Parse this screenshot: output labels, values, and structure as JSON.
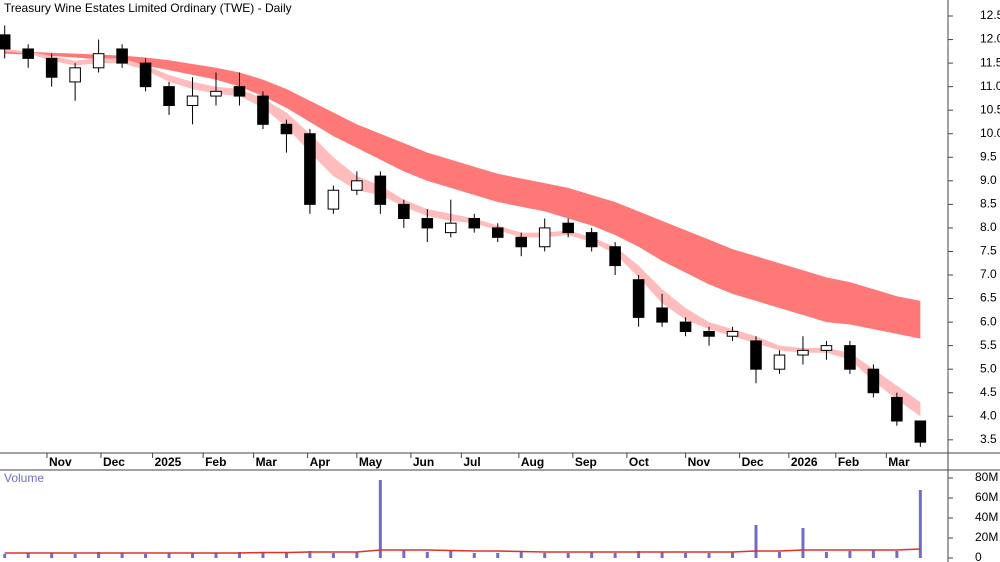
{
  "chart_data": [
    {
      "type": "candlestick",
      "title": "Treasury Wine Estates Limited Ordinary (TWE) - Daily",
      "x": [
        0,
        1,
        2,
        3,
        4,
        5,
        6,
        7,
        8,
        9,
        10,
        11,
        12,
        13,
        14,
        15,
        16,
        17,
        18,
        19,
        20,
        21,
        22,
        23,
        24,
        25,
        26,
        27,
        28,
        29,
        30,
        31,
        32,
        33,
        34,
        35,
        36,
        37,
        38,
        39
      ],
      "open": [
        12.1,
        11.8,
        11.6,
        11.1,
        11.4,
        11.8,
        11.5,
        11.0,
        10.6,
        10.8,
        11.0,
        10.8,
        10.2,
        10.0,
        8.4,
        8.8,
        9.1,
        8.5,
        8.2,
        7.9,
        8.2,
        8.0,
        7.8,
        7.6,
        8.1,
        7.9,
        7.6,
        6.9,
        6.3,
        6.0,
        5.8,
        5.7,
        5.6,
        5.0,
        5.3,
        5.4,
        5.5,
        5.0,
        4.4,
        3.9
      ],
      "high": [
        12.3,
        11.9,
        11.7,
        11.5,
        12.0,
        11.9,
        11.6,
        11.1,
        11.2,
        11.3,
        11.3,
        10.9,
        10.3,
        10.1,
        8.9,
        9.2,
        9.2,
        8.6,
        8.4,
        8.6,
        8.3,
        8.1,
        7.9,
        8.2,
        8.2,
        8.0,
        7.7,
        7.0,
        6.6,
        6.1,
        5.9,
        5.9,
        5.7,
        5.4,
        5.7,
        5.6,
        5.6,
        5.1,
        4.5,
        3.9
      ],
      "low": [
        11.6,
        11.4,
        11.0,
        10.7,
        11.3,
        11.4,
        10.9,
        10.4,
        10.2,
        10.6,
        10.6,
        10.1,
        9.6,
        8.3,
        8.3,
        8.7,
        8.3,
        8.0,
        7.7,
        7.8,
        7.9,
        7.7,
        7.4,
        7.5,
        7.8,
        7.5,
        7.0,
        5.9,
        5.9,
        5.7,
        5.5,
        5.6,
        4.7,
        4.9,
        5.1,
        5.2,
        4.9,
        4.4,
        3.8,
        3.35
      ],
      "close": [
        11.8,
        11.6,
        11.2,
        11.4,
        11.7,
        11.5,
        11.0,
        10.6,
        10.8,
        10.9,
        10.8,
        10.2,
        10.0,
        8.5,
        8.8,
        9.0,
        8.5,
        8.2,
        8.0,
        8.1,
        8.0,
        7.8,
        7.6,
        8.0,
        7.9,
        7.6,
        7.2,
        6.1,
        6.0,
        5.8,
        5.7,
        5.8,
        5.0,
        5.3,
        5.4,
        5.5,
        5.0,
        4.5,
        3.9,
        3.45
      ],
      "bands": [
        {
          "color": "#ff7878",
          "upper": [
            11.75,
            11.74,
            11.72,
            11.7,
            11.68,
            11.66,
            11.62,
            11.56,
            11.48,
            11.4,
            11.3,
            11.15,
            10.95,
            10.7,
            10.45,
            10.2,
            10.0,
            9.8,
            9.6,
            9.45,
            9.3,
            9.15,
            9.05,
            8.95,
            8.85,
            8.7,
            8.55,
            8.35,
            8.15,
            7.95,
            7.75,
            7.55,
            7.4,
            7.25,
            7.1,
            6.95,
            6.85,
            6.7,
            6.55,
            6.45
          ],
          "lower": [
            11.7,
            11.68,
            11.65,
            11.62,
            11.58,
            11.52,
            11.45,
            11.35,
            11.25,
            11.15,
            11.0,
            10.8,
            10.55,
            10.25,
            9.95,
            9.7,
            9.45,
            9.2,
            9.0,
            8.85,
            8.7,
            8.55,
            8.45,
            8.35,
            8.2,
            8.05,
            7.85,
            7.6,
            7.3,
            7.05,
            6.8,
            6.6,
            6.45,
            6.3,
            6.15,
            6.0,
            5.95,
            5.85,
            5.75,
            5.65
          ]
        },
        {
          "color": "#ffbcbc",
          "upper": [
            11.8,
            11.75,
            11.65,
            11.55,
            11.6,
            11.6,
            11.45,
            11.25,
            11.1,
            11.0,
            10.95,
            10.75,
            10.45,
            10.0,
            9.5,
            9.1,
            8.9,
            8.6,
            8.4,
            8.3,
            8.2,
            8.05,
            7.9,
            7.9,
            7.95,
            7.8,
            7.6,
            7.2,
            6.7,
            6.3,
            6.0,
            5.85,
            5.7,
            5.5,
            5.45,
            5.45,
            5.35,
            5.0,
            4.65,
            4.3
          ],
          "lower": [
            11.75,
            11.7,
            11.55,
            11.45,
            11.5,
            11.5,
            11.35,
            11.1,
            10.95,
            10.85,
            10.8,
            10.55,
            10.15,
            9.6,
            9.1,
            8.8,
            8.7,
            8.45,
            8.25,
            8.15,
            8.1,
            7.95,
            7.8,
            7.8,
            7.85,
            7.7,
            7.45,
            6.95,
            6.4,
            6.05,
            5.85,
            5.7,
            5.55,
            5.4,
            5.35,
            5.35,
            5.2,
            4.75,
            4.35,
            4.0
          ]
        }
      ],
      "xlim": [
        -0.2,
        40.05
      ],
      "xticks": [
        {
          "value": 1.8,
          "label": "Nov"
        },
        {
          "value": 4.1,
          "label": "Dec"
        },
        {
          "value": 6.3,
          "label": "2025"
        },
        {
          "value": 8.45,
          "label": "Feb"
        },
        {
          "value": 10.6,
          "label": "Mar"
        },
        {
          "value": 12.9,
          "label": "Apr"
        },
        {
          "value": 15.0,
          "label": "May"
        },
        {
          "value": 17.3,
          "label": "Jun"
        },
        {
          "value": 19.45,
          "label": "Jul"
        },
        {
          "value": 21.9,
          "label": "Aug"
        },
        {
          "value": 24.2,
          "label": "Sep"
        },
        {
          "value": 26.5,
          "label": "Oct"
        },
        {
          "value": 29.0,
          "label": "Nov"
        },
        {
          "value": 31.3,
          "label": "Dec"
        },
        {
          "value": 33.4,
          "label": "2026"
        },
        {
          "value": 35.4,
          "label": "Feb"
        },
        {
          "value": 37.55,
          "label": "Mar"
        }
      ],
      "ylim": [
        3.22,
        12.84
      ],
      "yticks": [
        3.5,
        {
          "value": 4,
          "label": "4.0"
        },
        4.5,
        {
          "value": 5,
          "label": "5.0"
        },
        5.5,
        {
          "value": 6,
          "label": "6.0"
        },
        6.5,
        {
          "value": 7,
          "label": "7.0"
        },
        7.5,
        {
          "value": 8,
          "label": "8.0"
        },
        8.5,
        {
          "value": 9,
          "label": "9.0"
        },
        9.5,
        {
          "value": 10,
          "label": "10.0"
        },
        10.5,
        {
          "value": 11,
          "label": "11.0"
        },
        11.5,
        {
          "value": 12,
          "label": "12.0"
        },
        12.5
      ]
    },
    {
      "type": "bar",
      "title": "Volume",
      "color": "#6e6ec8",
      "values": [
        4,
        5,
        5,
        4,
        6,
        5,
        4,
        5,
        5,
        5,
        6,
        5,
        6,
        7,
        5,
        6,
        78,
        8,
        6,
        7,
        5,
        5,
        6,
        5,
        5,
        6,
        5,
        7,
        6,
        5,
        5,
        6,
        33,
        6,
        30,
        6,
        7,
        8,
        7,
        68
      ],
      "average": {
        "color": "#e03030",
        "values": [
          5,
          5,
          5,
          5,
          5,
          5,
          5,
          5,
          5,
          5,
          5,
          5.5,
          5.5,
          6,
          6,
          6,
          8,
          8,
          8,
          7.5,
          7,
          7,
          6.5,
          6,
          6,
          6,
          6,
          6,
          6,
          6,
          6,
          6,
          7,
          7,
          8,
          8,
          8,
          8,
          8,
          9
        ]
      },
      "ylim": [
        0,
        85
      ],
      "yticks": [
        0,
        {
          "value": 20,
          "label": "20M"
        },
        {
          "value": 40,
          "label": "40M"
        },
        {
          "value": 60,
          "label": "60M"
        },
        {
          "value": 80,
          "label": "80M"
        }
      ]
    }
  ]
}
